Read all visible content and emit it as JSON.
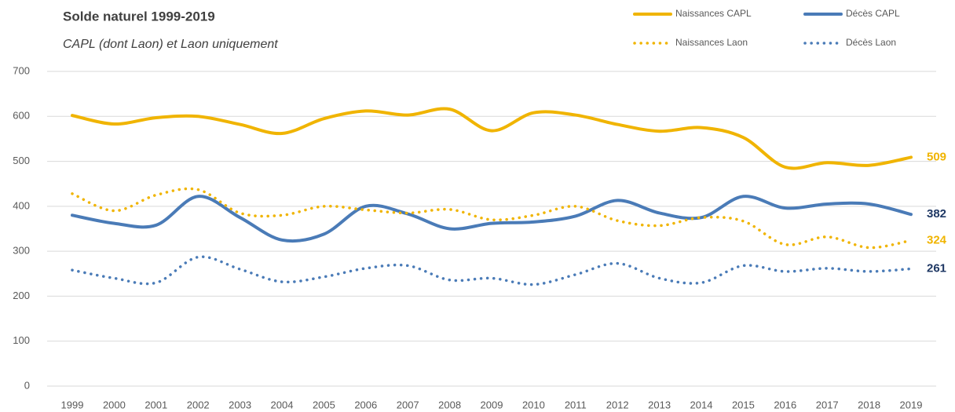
{
  "chart_data": {
    "type": "line",
    "title": "Solde naturel 1999-2019",
    "subtitle": "CAPL (dont Laon) et Laon uniquement",
    "categories": [
      "1999",
      "2000",
      "2001",
      "2002",
      "2003",
      "2004",
      "2005",
      "2006",
      "2007",
      "2008",
      "2009",
      "2010",
      "2011",
      "2012",
      "2013",
      "2014",
      "2015",
      "2016",
      "2017",
      "2018",
      "2019"
    ],
    "ylim": [
      0,
      700
    ],
    "yticks": [
      0,
      100,
      200,
      300,
      400,
      500,
      600,
      700
    ],
    "grid": true,
    "series": [
      {
        "name": "Naissances CAPL",
        "color": "#f0b400",
        "style": "solid",
        "values": [
          602,
          583,
          597,
          600,
          582,
          562,
          595,
          612,
          603,
          616,
          568,
          608,
          603,
          582,
          567,
          575,
          553,
          487,
          497,
          491,
          509
        ]
      },
      {
        "name": "Décès CAPL",
        "color": "#4a7bb7",
        "style": "solid",
        "values": [
          380,
          362,
          358,
          422,
          375,
          325,
          338,
          400,
          383,
          350,
          362,
          365,
          378,
          413,
          385,
          375,
          422,
          396,
          405,
          405,
          382
        ]
      },
      {
        "name": "Naissances Laon",
        "color": "#f0b400",
        "style": "dotted",
        "values": [
          428,
          390,
          425,
          437,
          385,
          380,
          400,
          392,
          385,
          393,
          370,
          380,
          400,
          368,
          357,
          375,
          367,
          315,
          332,
          308,
          324
        ]
      },
      {
        "name": "Décès Laon",
        "color": "#4a7bb7",
        "style": "dotted",
        "values": [
          258,
          240,
          230,
          287,
          260,
          232,
          243,
          262,
          268,
          236,
          240,
          226,
          248,
          273,
          240,
          230,
          268,
          255,
          262,
          255,
          261
        ]
      }
    ]
  }
}
